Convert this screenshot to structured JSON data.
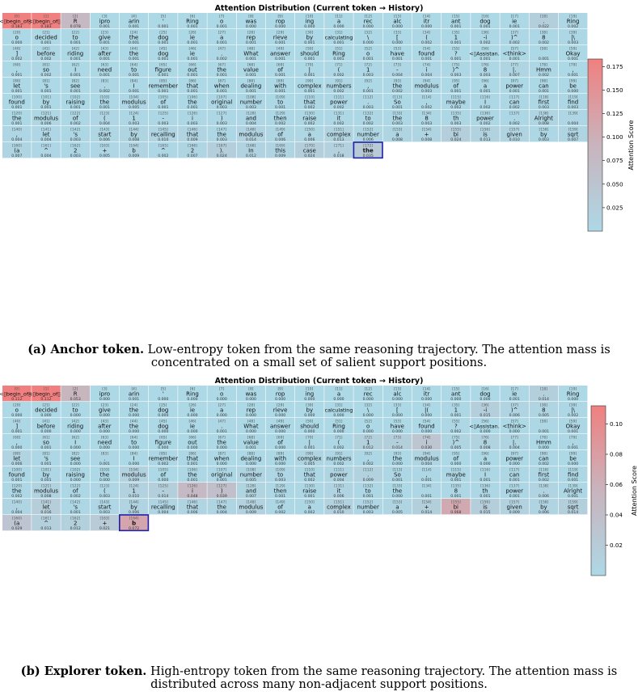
{
  "chart_data": [
    {
      "type": "heatmap",
      "panel": "a",
      "title": "Attention Distribution (Current token → History)",
      "colorbar_label": "Attention Score",
      "colorbar_ticks": [
        "0.025",
        "0.050",
        "0.075",
        "0.100",
        "0.125",
        "0.150",
        "0.175"
      ],
      "vmin": 0.0,
      "vmax": 0.183,
      "current_index": 172,
      "caption_bold": "(a) Anchor token.",
      "caption_text": " Low-entropy token from the same reasoning trajectory. The attention mass is concentrated on a small set of salient support positions.",
      "tokens": [
        "<▯begin_of▯User▯>",
        "<▯begin_of▯User▯>",
        "R",
        "ipro",
        "arin",
        "'",
        "Ring",
        "o",
        "was",
        "rop",
        "ing",
        "a",
        "rec",
        "alc",
        "itr",
        "ant",
        "dog",
        "ie",
        ".",
        "Ring",
        "o",
        "decided",
        "to",
        "give",
        "the",
        "dog",
        "ie",
        "a",
        "rep",
        "rieve",
        "by",
        "calculating",
        "\\",
        "[",
        "(",
        "1",
        "-i",
        ")^",
        "8",
        "|\\",
        "]",
        "before",
        "riding",
        "after",
        "the",
        "dog",
        "ie",
        ".",
        "What",
        "answer",
        "should",
        "Ring",
        "o",
        "have",
        "found",
        "?",
        "<▯Assistan..",
        "<think>",
        "",
        "Okay",
        ",",
        "so",
        "I",
        "need",
        "to",
        "figure",
        "out",
        "the",
        "value",
        "of",
        "|",
        "(",
        "1",
        "-",
        "i",
        ")^",
        "8",
        "|.",
        "Hmm",
        ",",
        "let",
        "'s",
        "see",
        ".",
        "I",
        "remember",
        "that",
        "when",
        "dealing",
        "with",
        "complex",
        "numbers",
        ",",
        "the",
        "modulus",
        "of",
        "a",
        "power",
        "can",
        "be",
        "found",
        "by",
        "raising",
        "the",
        "modulus",
        "of",
        "the",
        "original",
        "number",
        "to",
        "that",
        "power",
        ".",
        "So",
        ",",
        "maybe",
        "I",
        "can",
        "first",
        "find",
        "the",
        "modulus",
        "of",
        "(",
        "1",
        "-",
        "i",
        ")",
        "and",
        "then",
        "raise",
        "it",
        "to",
        "the",
        "8",
        "th",
        "power",
        ".",
        "Alright",
        "",
        ",",
        "let",
        "'s",
        "start",
        "by",
        "recalling",
        "that",
        "the",
        "modulus",
        "of",
        "a",
        "complex",
        "number",
        "a",
        "+",
        "bi",
        "is",
        "given",
        "by",
        "sqrt",
        "(a",
        "^",
        "2",
        "+",
        "b",
        "^",
        "2",
        ").",
        "In",
        "this",
        "case",
        ",",
        "the"
      ],
      "scores": [
        0.183,
        0.183,
        0.078,
        0.001,
        0.001,
        0.001,
        0.001,
        0.001,
        0.0,
        0.0,
        0.0,
        0.0,
        0.0,
        0.0,
        0.0,
        0.001,
        0.001,
        0.001,
        0.022,
        0.002,
        0.0,
        0.001,
        0.001,
        0.001,
        0.001,
        0.001,
        0.001,
        0.001,
        0.001,
        0.001,
        0.001,
        0.001,
        0.0,
        0.0,
        0.002,
        0.001,
        0.002,
        0.002,
        0.002,
        0.003,
        0.002,
        0.002,
        0.001,
        0.001,
        0.001,
        0.001,
        0.001,
        0.002,
        0.001,
        0.001,
        0.001,
        0.001,
        0.001,
        0.001,
        0.001,
        0.001,
        0.001,
        0.001,
        0.001,
        0.001,
        0.001,
        0.002,
        0.001,
        0.001,
        0.001,
        0.001,
        0.001,
        0.001,
        0.001,
        0.001,
        0.001,
        0.002,
        0.003,
        0.004,
        0.004,
        0.003,
        0.003,
        0.007,
        0.002,
        0.001,
        0.001,
        0.001,
        0.001,
        0.002,
        0.001,
        0.001,
        0.001,
        0.001,
        0.001,
        0.001,
        0.001,
        0.002,
        0.001,
        0.002,
        0.003,
        0.001,
        0.001,
        0.001,
        0.001,
        0.0,
        0.001,
        0.001,
        0.001,
        0.001,
        0.005,
        0.001,
        0.001,
        0.003,
        0.003,
        0.001,
        0.002,
        0.002,
        0.003,
        0.001,
        0.002,
        0.002,
        0.002,
        0.002,
        0.003,
        0.003,
        0.001,
        0.006,
        0.002,
        0.004,
        0.003,
        0.003,
        0.003,
        0.003,
        0.004,
        0.002,
        0.002,
        0.002,
        0.002,
        0.003,
        0.003,
        0.003,
        0.002,
        0.002,
        0.008,
        0.004,
        0.004,
        0.004,
        0.003,
        0.006,
        0.008,
        0.01,
        0.009,
        0.003,
        0.014,
        0.006,
        0.006,
        0.013,
        0.006,
        0.008,
        0.008,
        0.024,
        0.013,
        0.01,
        0.003,
        0.007,
        0.007,
        0.004,
        0.003,
        0.005,
        0.009,
        0.002,
        0.007,
        0.024,
        0.012,
        0.009,
        0.024,
        0.018,
        0.035
      ]
    },
    {
      "type": "heatmap",
      "panel": "b",
      "title": "Attention Distribution (Current token → History)",
      "colorbar_label": "Attention Score",
      "colorbar_ticks": [
        "0.02",
        "0.04",
        "0.06",
        "0.08",
        "0.10"
      ],
      "vmin": 0.0,
      "vmax": 0.112,
      "current_index": 164,
      "caption_bold": "(b) Explorer token.",
      "caption_text": " High-entropy token from the same reasoning trajectory. The attention mass is distributed across many non-adjacent support positions.",
      "tokens": [
        "<▯begin_of▯User▯>",
        "<▯begin_of▯User▯>",
        "R",
        "ipro",
        "arin",
        "'",
        "Ring",
        "o",
        "was",
        "rop",
        "ing",
        "a",
        "rec",
        "alc",
        "itr",
        "ant",
        "dog",
        "ie",
        ".",
        "Ring",
        "o",
        "decided",
        "to",
        "give",
        "the",
        "dog",
        "ie",
        "a",
        "rep",
        "rieve",
        "by",
        "calculating",
        "\\",
        "[",
        "|(",
        "1",
        "-i",
        ")^",
        "8",
        "|\\",
        "]",
        "before",
        "riding",
        "after",
        "the",
        "dog",
        "ie",
        ".",
        "What",
        "answer",
        "should",
        "Ring",
        "o",
        "have",
        "found",
        "?",
        "<▯Assistan..",
        "<think>",
        "",
        "Okay",
        ",",
        "so",
        "I",
        "need",
        "to",
        "figure",
        "out",
        "the",
        "value",
        "of",
        "|",
        "(",
        "1",
        "-",
        "i",
        ")^",
        "8",
        "|.",
        "Hmm",
        ",",
        "let",
        "'s",
        "see",
        ".",
        "I",
        "remember",
        "that",
        "when",
        "dealing",
        "with",
        "complex",
        "numbers",
        ",",
        "the",
        "modulus",
        "of",
        "a",
        "power",
        "can",
        "be",
        "found",
        "by",
        "raising",
        "the",
        "modulus",
        "of",
        "the",
        "original",
        "number",
        "to",
        "that",
        "power",
        ".",
        "So",
        ",",
        "maybe",
        "I",
        "can",
        "first",
        "find",
        "the",
        "modulus",
        "of",
        "(",
        "1",
        "-",
        "i",
        ")",
        "and",
        "then",
        "raise",
        "it",
        "to",
        "the",
        "",
        "8",
        "th",
        "power",
        ".",
        "Alright",
        ",",
        "let",
        "'s",
        "start",
        "by",
        "recalling",
        "that",
        "the",
        "modulus",
        "of",
        "a",
        "complex",
        "number",
        "a",
        "+",
        "bi",
        "is",
        "given",
        "by",
        "sqrt",
        "(a",
        "^",
        "2",
        "+",
        "b"
      ],
      "scores": [
        0.112,
        0.112,
        0.053,
        0.0,
        0.001,
        0.0,
        0.0,
        0.0,
        0.0,
        0.0,
        0.0,
        0.0,
        0.0,
        0.0,
        0.0,
        0.0,
        0.0,
        0.001,
        0.014,
        0.0,
        0.0,
        0.0,
        0.0,
        0.0,
        0.0,
        0.0,
        0.0,
        0.0,
        0.0,
        0.0,
        0.0,
        0.0,
        0.0,
        0.0,
        0.0,
        0.001,
        0.015,
        0.006,
        0.005,
        0.002,
        0.001,
        0.0,
        0.0,
        0.0,
        0.0,
        0.0,
        0.0,
        0.001,
        0.0,
        0.0,
        0.0,
        0.0,
        0.0,
        0.0,
        0.0,
        0.002,
        0.0,
        0.0,
        0.001,
        0.001,
        0.0,
        0.001,
        0.0,
        0.0,
        0.0,
        0.0,
        0.0,
        0.0,
        0.001,
        0.0,
        0.001,
        0.002,
        0.012,
        0.014,
        0.03,
        0.005,
        0.008,
        0.004,
        0.0,
        0.001,
        0.006,
        0.001,
        0.0,
        0.001,
        0.0,
        0.002,
        0.001,
        0.0,
        0.0,
        0.0,
        0.005,
        0.002,
        0.002,
        0.0,
        0.004,
        0.0,
        0.0,
        0.0,
        0.002,
        0.0,
        0.001,
        0.001,
        0.0,
        0.0,
        0.009,
        0.0,
        0.001,
        0.001,
        0.005,
        0.003,
        0.002,
        0.004,
        0.009,
        0.001,
        0.001,
        0.001,
        0.001,
        0.001,
        0.002,
        0.001,
        0.002,
        0.008,
        0.002,
        0.003,
        0.01,
        0.014,
        0.048,
        0.039,
        0.007,
        0.001,
        0.001,
        0.006,
        0.001,
        0.0,
        0.001,
        0.001,
        0.001,
        0.001,
        0.006,
        0.001,
        0.004,
        0.016,
        0.001,
        0.003,
        0.006,
        0.004,
        0.006,
        0.004,
        0.009,
        0.002,
        0.002,
        0.01,
        0.003,
        0.005,
        0.014,
        0.068,
        0.015,
        0.009,
        0.006,
        0.014,
        0.029,
        0.013,
        0.012,
        0.021,
        0.072
      ]
    }
  ]
}
